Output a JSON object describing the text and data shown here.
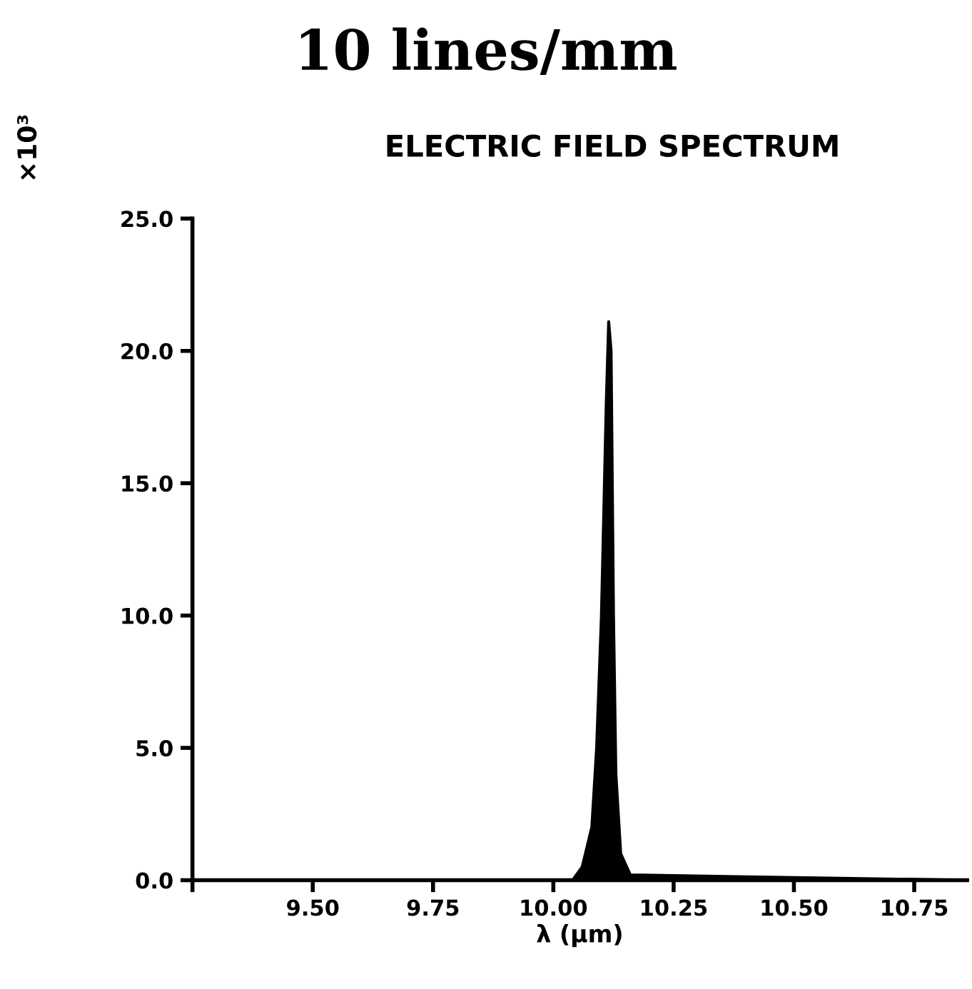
{
  "chart_data": {
    "type": "area",
    "title": "10 lines/mm",
    "subtitle": "ELECTRIC FIELD SPECTRUM",
    "xlabel": "λ (μm)",
    "ylabel": "×10³",
    "x": [
      9.25,
      10.04,
      10.06,
      10.08,
      10.09,
      10.1,
      10.11,
      10.115,
      10.12,
      10.125,
      10.13,
      10.14,
      10.16,
      10.86
    ],
    "series": [
      {
        "color": "#000000",
        "values": [
          0,
          0,
          0.5,
          2,
          5,
          10,
          18,
          21.1,
          20,
          10,
          4,
          1,
          0.2,
          0
        ]
      }
    ],
    "xlim": [
      9.25,
      10.86
    ],
    "xticks": [
      {
        "value": 9.25,
        "label": null
      },
      {
        "value": 9.5,
        "label": "9.50"
      },
      {
        "value": 9.75,
        "label": "9.75"
      },
      {
        "value": 10.0,
        "label": "10.00"
      },
      {
        "value": 10.25,
        "label": "10.25"
      },
      {
        "value": 10.5,
        "label": "10.50"
      },
      {
        "value": 10.75,
        "label": "10.75"
      }
    ],
    "ylim": [
      0,
      25
    ],
    "yticks": [
      {
        "value": 0,
        "label": "0.0"
      },
      {
        "value": 5,
        "label": "5.0"
      },
      {
        "value": 10,
        "label": "10.0"
      },
      {
        "value": 15,
        "label": "15.0"
      },
      {
        "value": 20,
        "label": "20.0"
      },
      {
        "value": 25,
        "label": "25.0"
      }
    ],
    "grid": false,
    "legend": false
  }
}
